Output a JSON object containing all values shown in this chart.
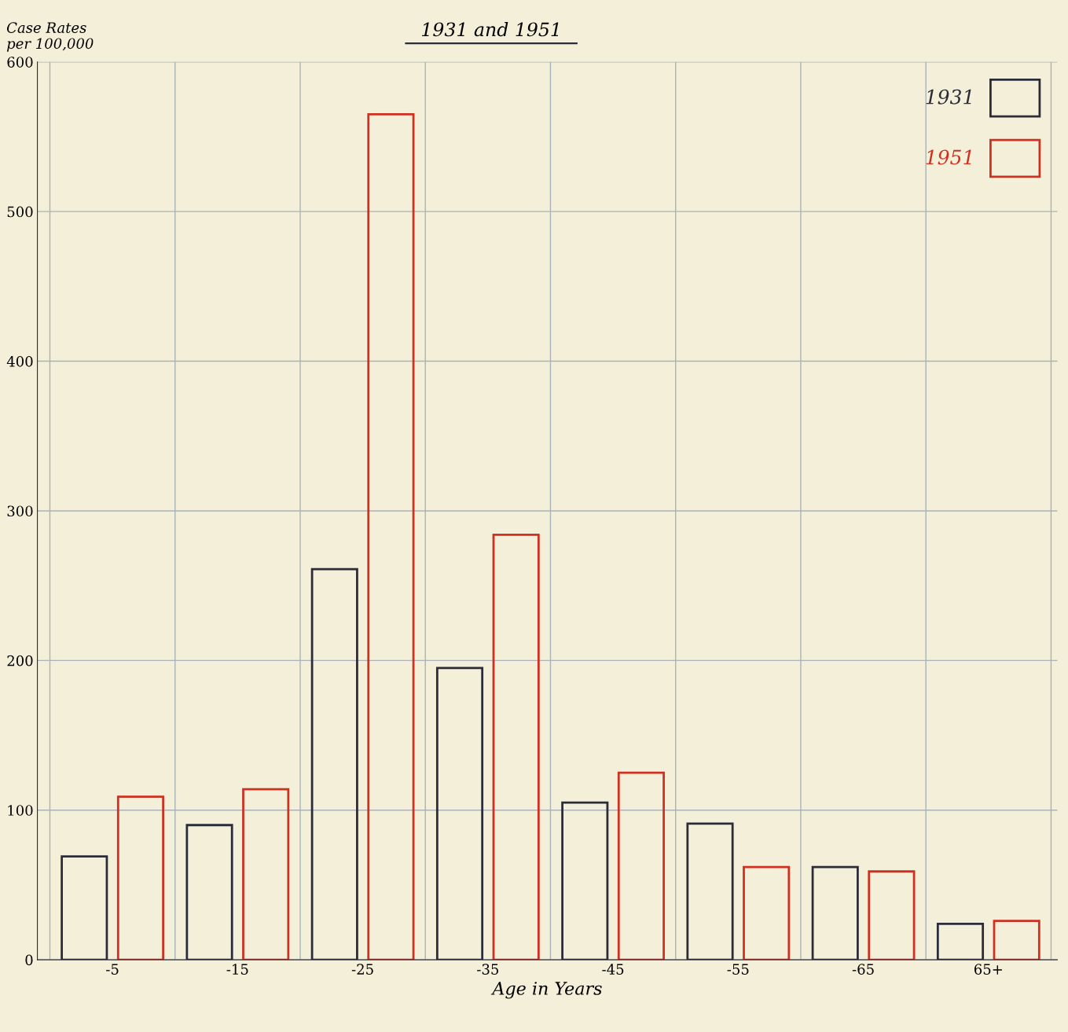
{
  "chart_data": {
    "type": "bar",
    "title": "1931 and 1951",
    "ylabel": "Case Rates\nper 100,000",
    "xlabel": "Age in Years",
    "categories": [
      "-5",
      "-15",
      "-25",
      "-35",
      "-45",
      "-55",
      "-65",
      "65+"
    ],
    "series": [
      {
        "name": "1931",
        "color": "#2b2b3a",
        "values": [
          69,
          90,
          261,
          195,
          105,
          91,
          62,
          24
        ]
      },
      {
        "name": "1951",
        "color": "#d03020",
        "values": [
          109,
          114,
          565,
          284,
          125,
          62,
          59,
          26
        ]
      }
    ],
    "ylim": [
      0,
      600
    ],
    "yticks": [
      0,
      100,
      200,
      300,
      400,
      500,
      600
    ],
    "grid": true,
    "legend": "top right"
  }
}
